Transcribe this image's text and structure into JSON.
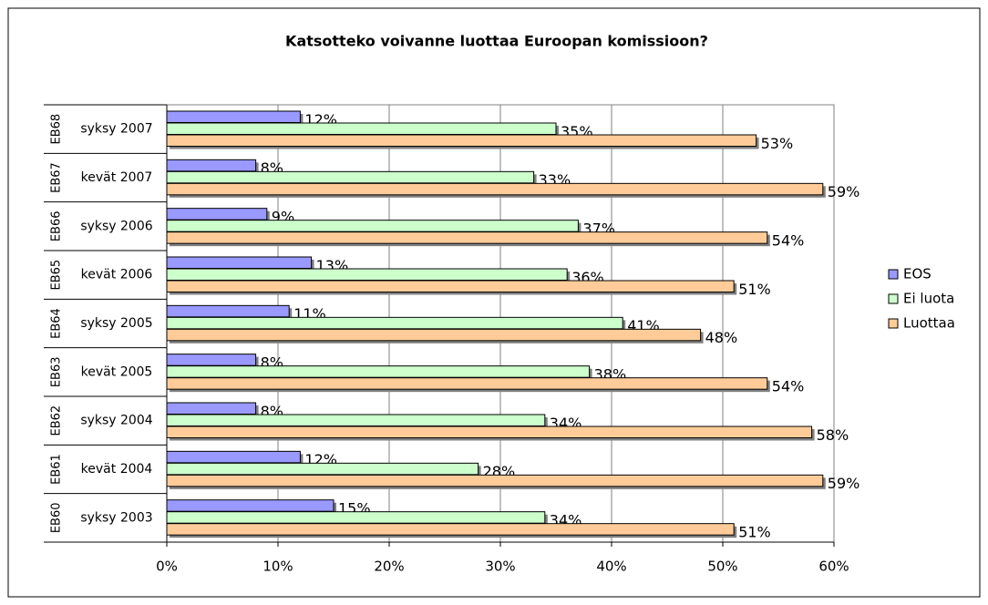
{
  "chart_data": {
    "type": "bar",
    "orientation": "horizontal",
    "title": "Katsotteko voivanne luottaa Euroopan komissioon?",
    "categories": [
      "syksy 2007",
      "kevät 2007",
      "syksy 2006",
      "kevät 2006",
      "syksy 2005",
      "kevät 2005",
      "syksy 2004",
      "kevät 2004",
      "syksy 2003"
    ],
    "category_groups": [
      "EB68",
      "EB67",
      "EB66",
      "EB65",
      "EB64",
      "EB63",
      "EB62",
      "EB61",
      "EB60"
    ],
    "series": [
      {
        "name": "EOS",
        "color": "#9999ff",
        "values": [
          12,
          8,
          9,
          13,
          11,
          8,
          8,
          12,
          15
        ],
        "value_labels": [
          "12%",
          "8%",
          "9%",
          "13%",
          "11%",
          "8%",
          "8%",
          "12%",
          "15%"
        ]
      },
      {
        "name": "Ei luota",
        "color": "#ccffcc",
        "values": [
          35,
          33,
          37,
          36,
          41,
          38,
          34,
          28,
          34
        ],
        "value_labels": [
          "35%",
          "33%",
          "37%",
          "36%",
          "41%",
          "38%",
          "34%",
          "28%",
          "34%"
        ]
      },
      {
        "name": "Luottaa",
        "color": "#ffcc99",
        "values": [
          53,
          59,
          54,
          51,
          48,
          54,
          58,
          59,
          51
        ],
        "value_labels": [
          "53%",
          "59%",
          "54%",
          "51%",
          "48%",
          "54%",
          "58%",
          "59%",
          "51%"
        ]
      }
    ],
    "xlim": [
      0,
      60
    ],
    "xticks": [
      {
        "value": 0,
        "label": "0%"
      },
      {
        "value": 10,
        "label": "10%"
      },
      {
        "value": 20,
        "label": "20%"
      },
      {
        "value": 30,
        "label": "30%"
      },
      {
        "value": 40,
        "label": "40%"
      },
      {
        "value": 50,
        "label": "50%"
      },
      {
        "value": 60,
        "label": "60%"
      }
    ],
    "grid": true,
    "legend": "right"
  }
}
